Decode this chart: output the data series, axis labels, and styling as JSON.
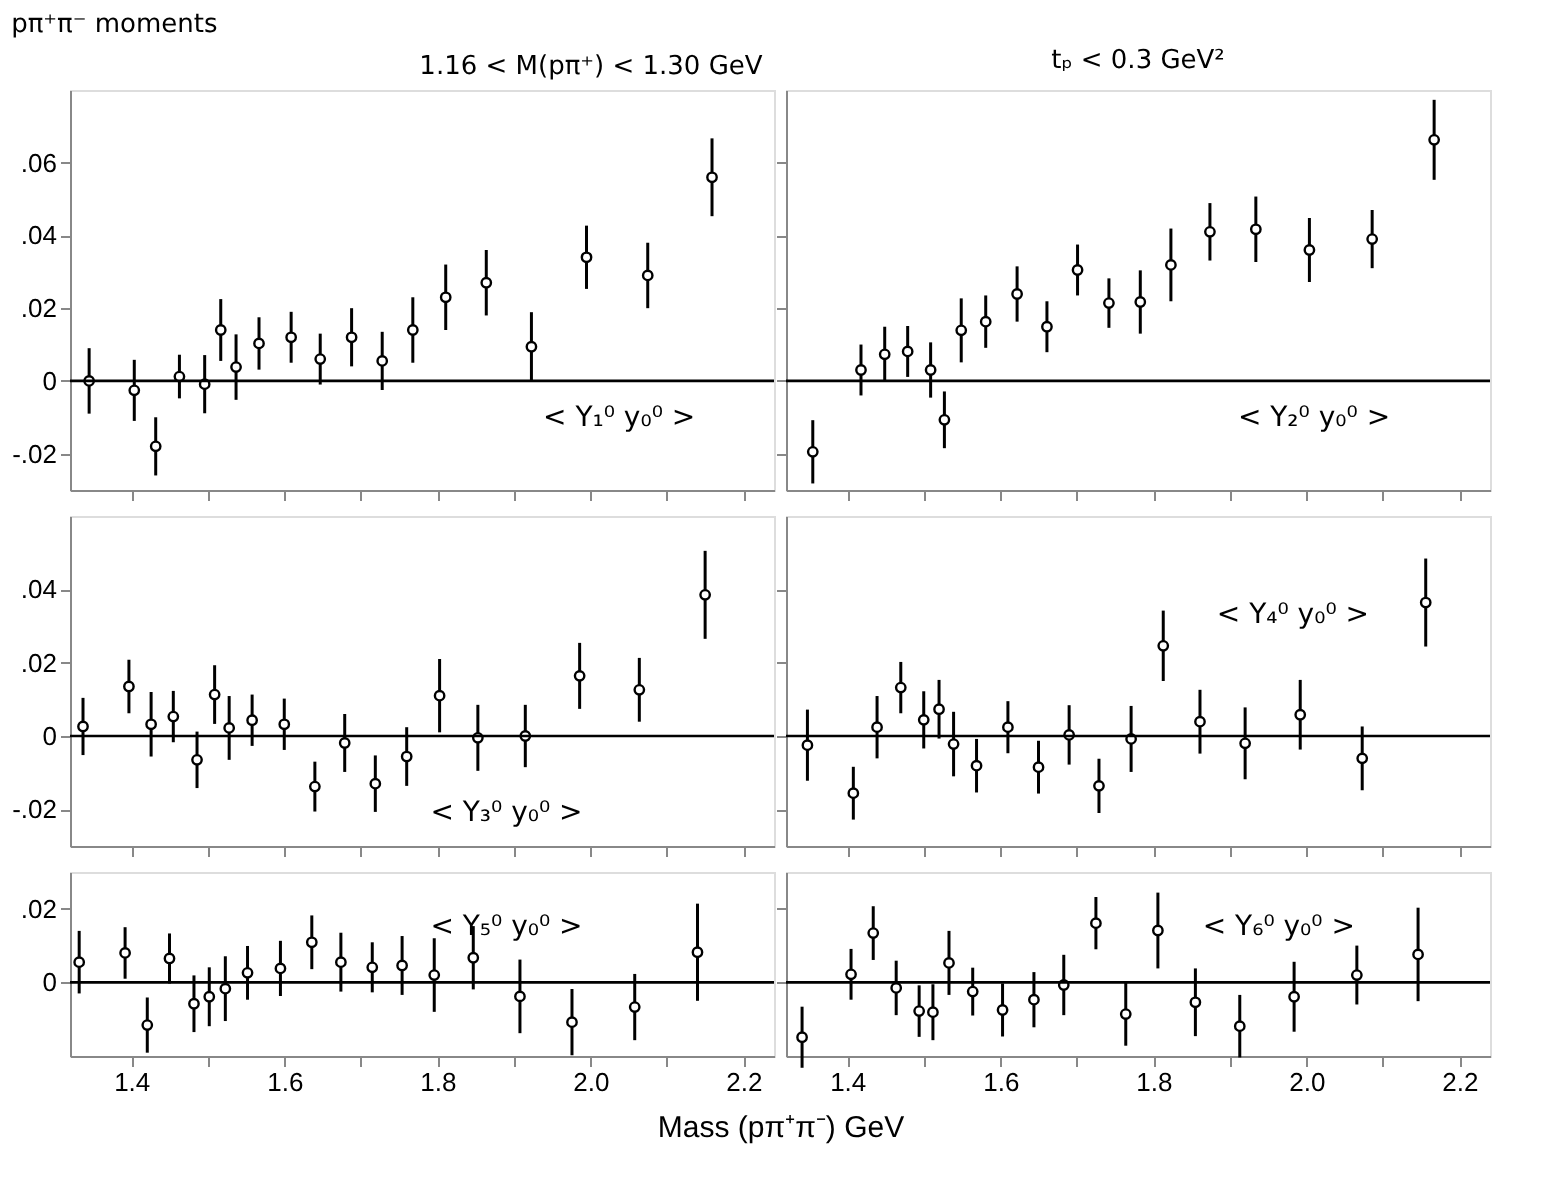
{
  "chart_data": [
    {
      "type": "scatter",
      "title": "pπ⁺π⁻  moments",
      "annotations": [
        "< Y₁⁰ y₀⁰ >",
        "1.16 < M(pπ⁺) < 1.30 GeV"
      ],
      "marker": "circle",
      "tick_labels": "y",
      "xlim": [
        1.32,
        2.24
      ],
      "xticks": [
        1.4,
        1.5,
        1.6,
        1.7,
        1.8,
        1.9,
        2.0,
        2.1,
        2.2
      ],
      "ylim": [
        -0.03,
        0.08
      ],
      "yticks": [
        {
          "value": -0.02,
          "label": "-.02"
        },
        {
          "value": 0,
          "label": "0"
        },
        {
          "value": 0.02,
          "label": ".02"
        },
        {
          "value": 0.04,
          "label": ".04"
        },
        {
          "value": 0.06,
          "label": ".06"
        }
      ],
      "ref_lines": [
        {
          "axis": "y",
          "value": 0
        }
      ],
      "series": [
        {
          "color": "#000000",
          "x": [
            1.345,
            1.404,
            1.432,
            1.463,
            1.496,
            1.517,
            1.537,
            1.567,
            1.609,
            1.647,
            1.688,
            1.728,
            1.768,
            1.811,
            1.864,
            1.923,
            1.995,
            2.075,
            2.159
          ],
          "values": [
            0.0,
            -0.0026,
            -0.018,
            0.0012,
            -0.0009,
            0.014,
            0.0038,
            0.0103,
            0.012,
            0.006,
            0.012,
            0.0055,
            0.014,
            0.023,
            0.027,
            0.0094,
            0.034,
            0.029,
            0.056
          ],
          "errors": [
            0.009,
            0.0084,
            0.008,
            0.006,
            0.008,
            0.0085,
            0.009,
            0.0072,
            0.007,
            0.007,
            0.008,
            0.008,
            0.009,
            0.009,
            0.009,
            0.0095,
            0.0087,
            0.009,
            0.0107
          ]
        }
      ]
    },
    {
      "type": "scatter",
      "title": "tₚ < 0.3 GeV²",
      "annotations": [
        "< Y₂⁰ y₀⁰ >"
      ],
      "marker": "circle",
      "tick_labels": false,
      "xlim": [
        1.32,
        2.24
      ],
      "xticks": [
        1.4,
        1.5,
        1.6,
        1.7,
        1.8,
        1.9,
        2.0,
        2.1,
        2.2
      ],
      "ylim": [
        -0.03,
        0.08
      ],
      "yticks": [
        -0.02,
        0,
        0.02,
        0.04,
        0.06
      ],
      "ref_lines": [
        {
          "axis": "y",
          "value": 0
        }
      ],
      "series": [
        {
          "color": "#000000",
          "x": [
            1.355,
            1.418,
            1.449,
            1.479,
            1.509,
            1.527,
            1.549,
            1.581,
            1.622,
            1.661,
            1.701,
            1.742,
            1.783,
            1.823,
            1.874,
            1.934,
            2.004,
            2.086,
            2.167
          ],
          "values": [
            -0.0195,
            0.003,
            0.0073,
            0.0081,
            0.003,
            -0.0107,
            0.0139,
            0.0163,
            0.0239,
            0.0149,
            0.0305,
            0.0214,
            0.0217,
            0.0319,
            0.041,
            0.0417,
            0.036,
            0.039,
            0.0663
          ],
          "errors": [
            0.0087,
            0.007,
            0.0076,
            0.007,
            0.0076,
            0.0078,
            0.0088,
            0.0072,
            0.0076,
            0.007,
            0.007,
            0.0068,
            0.0087,
            0.01,
            0.0079,
            0.009,
            0.0088,
            0.008,
            0.011
          ]
        }
      ]
    },
    {
      "type": "scatter",
      "annotations": [
        "< Y₃⁰ y₀⁰ >"
      ],
      "marker": "circle",
      "tick_labels": "y",
      "xlim": [
        1.32,
        2.24
      ],
      "xticks": [
        1.4,
        1.5,
        1.6,
        1.7,
        1.8,
        1.9,
        2.0,
        2.1,
        2.2
      ],
      "ylim": [
        -0.03,
        0.06
      ],
      "yticks": [
        {
          "value": -0.02,
          "label": "-.02"
        },
        {
          "value": 0,
          "label": "0"
        },
        {
          "value": 0.02,
          "label": ".02"
        },
        {
          "value": 0.04,
          "label": ".04"
        }
      ],
      "ref_lines": [
        {
          "axis": "y",
          "value": 0
        }
      ],
      "series": [
        {
          "color": "#000000",
          "x": [
            1.337,
            1.397,
            1.426,
            1.455,
            1.486,
            1.509,
            1.528,
            1.558,
            1.6,
            1.64,
            1.679,
            1.719,
            1.76,
            1.803,
            1.853,
            1.915,
            1.986,
            2.064,
            2.15
          ],
          "values": [
            0.0026,
            0.0135,
            0.0032,
            0.0053,
            -0.0065,
            0.0113,
            0.0022,
            0.0043,
            0.0032,
            -0.0138,
            -0.0019,
            -0.013,
            -0.0056,
            0.011,
            -0.0005,
            0.0,
            0.0164,
            0.0126,
            0.0385
          ],
          "errors": [
            0.0078,
            0.0073,
            0.0088,
            0.007,
            0.0077,
            0.008,
            0.0087,
            0.007,
            0.007,
            0.0068,
            0.0079,
            0.0077,
            0.008,
            0.01,
            0.009,
            0.0085,
            0.009,
            0.0087,
            0.012
          ]
        }
      ]
    },
    {
      "type": "scatter",
      "annotations": [
        "< Y₄⁰ y₀⁰ >"
      ],
      "marker": "circle",
      "tick_labels": false,
      "xlim": [
        1.32,
        2.24
      ],
      "xticks": [
        1.4,
        1.5,
        1.6,
        1.7,
        1.8,
        1.9,
        2.0,
        2.1,
        2.2
      ],
      "ylim": [
        -0.03,
        0.06
      ],
      "yticks": [
        -0.02,
        0,
        0.02,
        0.04
      ],
      "ref_lines": [
        {
          "axis": "y",
          "value": 0
        }
      ],
      "series": [
        {
          "color": "#000000",
          "x": [
            1.348,
            1.408,
            1.439,
            1.47,
            1.5,
            1.52,
            1.539,
            1.569,
            1.61,
            1.65,
            1.69,
            1.729,
            1.771,
            1.813,
            1.861,
            1.92,
            1.992,
            2.073,
            2.156
          ],
          "values": [
            -0.0025,
            -0.0156,
            0.0024,
            0.0132,
            0.0044,
            0.0073,
            -0.0022,
            -0.0081,
            0.0024,
            -0.0085,
            0.0003,
            -0.0136,
            -0.0008,
            0.0246,
            0.0039,
            -0.002,
            0.0058,
            -0.0061,
            0.0364
          ],
          "errors": [
            0.0097,
            0.0072,
            0.0085,
            0.007,
            0.0078,
            0.008,
            0.0088,
            0.0073,
            0.0071,
            0.0072,
            0.0081,
            0.0074,
            0.009,
            0.0096,
            0.0087,
            0.0098,
            0.0095,
            0.0087,
            0.012
          ]
        }
      ]
    },
    {
      "type": "scatter",
      "xlabel": "Mass (pπ⁺π⁻) GeV",
      "annotations": [
        "< Y₅⁰ y₀⁰ >"
      ],
      "marker": "circle",
      "xlim": [
        1.32,
        2.24
      ],
      "xticks": [
        {
          "value": 1.4,
          "label": "1.4"
        },
        {
          "value": 1.5,
          "label": null
        },
        {
          "value": 1.6,
          "label": "1.6"
        },
        {
          "value": 1.7,
          "label": null
        },
        {
          "value": 1.8,
          "label": "1.8"
        },
        {
          "value": 1.9,
          "label": null
        },
        {
          "value": 2.0,
          "label": "2.0"
        },
        {
          "value": 2.1,
          "label": null
        },
        {
          "value": 2.2,
          "label": "2.2"
        }
      ],
      "ylim": [
        -0.02,
        0.03
      ],
      "yticks": [
        {
          "value": 0,
          "label": "0"
        },
        {
          "value": 0.02,
          "label": ".02"
        }
      ],
      "ref_lines": [
        {
          "axis": "y",
          "value": 0
        }
      ],
      "series": [
        {
          "color": "#000000",
          "x": [
            1.332,
            1.392,
            1.421,
            1.45,
            1.482,
            1.502,
            1.523,
            1.552,
            1.595,
            1.636,
            1.674,
            1.715,
            1.754,
            1.796,
            1.847,
            1.908,
            1.976,
            2.058,
            2.14
          ],
          "values": [
            0.0055,
            0.008,
            -0.0116,
            0.0065,
            -0.0058,
            -0.0039,
            -0.0017,
            0.0026,
            0.0038,
            0.0109,
            0.0055,
            0.0041,
            0.0046,
            0.002,
            0.0067,
            -0.0038,
            -0.0108,
            -0.0067,
            0.0082
          ],
          "errors": [
            0.0085,
            0.007,
            0.0075,
            0.0068,
            0.0077,
            0.008,
            0.0088,
            0.0073,
            0.0075,
            0.0073,
            0.008,
            0.0068,
            0.008,
            0.01,
            0.0086,
            0.01,
            0.009,
            0.009,
            0.0132
          ]
        }
      ]
    },
    {
      "type": "scatter",
      "annotations": [
        "< Y₆⁰ y₀⁰ >"
      ],
      "marker": "circle",
      "tick_labels": "x",
      "xlim": [
        1.32,
        2.24
      ],
      "xticks": [
        {
          "value": 1.4,
          "label": "1.4"
        },
        {
          "value": 1.5,
          "label": null
        },
        {
          "value": 1.6,
          "label": "1.6"
        },
        {
          "value": 1.7,
          "label": null
        },
        {
          "value": 1.8,
          "label": "1.8"
        },
        {
          "value": 1.9,
          "label": null
        },
        {
          "value": 2.0,
          "label": "2.0"
        },
        {
          "value": 2.1,
          "label": null
        },
        {
          "value": 2.2,
          "label": "2.2"
        }
      ],
      "ylim": [
        -0.02,
        0.03
      ],
      "yticks": [
        0,
        0.02
      ],
      "ref_lines": [
        {
          "axis": "y",
          "value": 0
        }
      ],
      "series": [
        {
          "color": "#000000",
          "x": [
            1.341,
            1.405,
            1.434,
            1.464,
            1.494,
            1.512,
            1.533,
            1.564,
            1.603,
            1.644,
            1.683,
            1.725,
            1.764,
            1.806,
            1.855,
            1.913,
            1.984,
            2.066,
            2.146
          ],
          "values": [
            -0.0149,
            0.0022,
            0.0134,
            -0.0015,
            -0.0078,
            -0.0081,
            0.0053,
            -0.0025,
            -0.0075,
            -0.0047,
            -0.0007,
            0.0161,
            -0.0086,
            0.0141,
            -0.0054,
            -0.0119,
            -0.0039,
            0.002,
            0.0076
          ],
          "errors": [
            0.0083,
            0.0069,
            0.0073,
            0.0074,
            0.007,
            0.0076,
            0.0087,
            0.0065,
            0.0072,
            0.0075,
            0.0082,
            0.0071,
            0.0086,
            0.0103,
            0.0092,
            0.0085,
            0.0095,
            0.008,
            0.0127
          ]
        }
      ]
    }
  ]
}
